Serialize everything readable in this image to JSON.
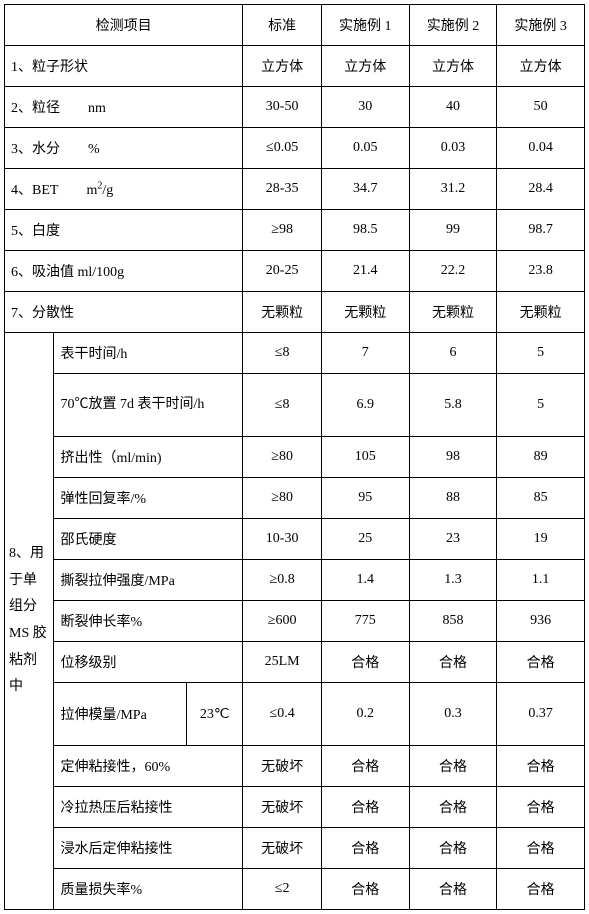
{
  "header": {
    "item": "检测项目",
    "std": "标准",
    "e1": "实施例 1",
    "e2": "实施例 2",
    "e3": "实施例 3"
  },
  "rows": [
    {
      "label": "1、粒子形状",
      "std": "立方体",
      "e1": "立方体",
      "e2": "立方体",
      "e3": "立方体"
    },
    {
      "label_html": "2、粒径&nbsp;&nbsp;&nbsp;&nbsp;&nbsp;&nbsp;&nbsp;&nbsp;nm",
      "std": "30-50",
      "e1": "30",
      "e2": "40",
      "e3": "50"
    },
    {
      "label_html": "3、水分&nbsp;&nbsp;&nbsp;&nbsp;&nbsp;&nbsp;&nbsp;&nbsp;%",
      "std": "≤0.05",
      "e1": "0.05",
      "e2": "0.03",
      "e3": "0.04"
    },
    {
      "label_html": "4、BET&nbsp;&nbsp;&nbsp;&nbsp;&nbsp;&nbsp;&nbsp;&nbsp;m<sup>2</sup>/g",
      "std": "28-35",
      "e1": "34.7",
      "e2": "31.2",
      "e3": "28.4"
    },
    {
      "label": "5、白度",
      "std": "≥98",
      "e1": "98.5",
      "e2": "99",
      "e3": "98.7"
    },
    {
      "label": "6、吸油值  ml/100g",
      "std": "20-25",
      "e1": "21.4",
      "e2": "22.2",
      "e3": "23.8"
    },
    {
      "label": "7、分散性",
      "std": "无颗粒",
      "e1": "无颗粒",
      "e2": "无颗粒",
      "e3": "无颗粒"
    }
  ],
  "group8": {
    "title": "8、用于单组分 MS 胶粘剂中",
    "rows": [
      {
        "label": "表干时间/h",
        "std": "≤8",
        "e1": "7",
        "e2": "6",
        "e3": "5"
      },
      {
        "label": "70℃放置 7d 表干时间/h",
        "std": "≤8",
        "e1": "6.9",
        "e2": "5.8",
        "e3": "5",
        "tall": true
      },
      {
        "label": "挤出性（ml/min)",
        "std": "≥80",
        "e1": "105",
        "e2": "98",
        "e3": "89"
      },
      {
        "label": "弹性回复率/%",
        "std": "≥80",
        "e1": "95",
        "e2": "88",
        "e3": "85"
      },
      {
        "label": "邵氏硬度",
        "std": "10-30",
        "e1": "25",
        "e2": "23",
        "e3": "19"
      },
      {
        "label": "撕裂拉伸强度/MPa",
        "std": "≥0.8",
        "e1": "1.4",
        "e2": "1.3",
        "e3": "1.1"
      },
      {
        "label": "断裂伸长率%",
        "std": "≥600",
        "e1": "775",
        "e2": "858",
        "e3": "936"
      },
      {
        "label": "位移级别",
        "std": "25LM",
        "e1": "合格",
        "e2": "合格",
        "e3": "合格"
      },
      {
        "label_main": "拉伸模量/MPa",
        "label_sub": "23℃",
        "std": "≤0.4",
        "e1": "0.2",
        "e2": "0.3",
        "e3": "0.37",
        "split": true
      },
      {
        "label": "定伸粘接性，60%",
        "std": "无破坏",
        "e1": "合格",
        "e2": "合格",
        "e3": "合格"
      },
      {
        "label": "冷拉热压后粘接性",
        "std": "无破坏",
        "e1": "合格",
        "e2": "合格",
        "e3": "合格"
      },
      {
        "label": "浸水后定伸粘接性",
        "std": "无破坏",
        "e1": "合格",
        "e2": "合格",
        "e3": "合格"
      },
      {
        "label": "质量损失率%",
        "std": "≤2",
        "e1": "合格",
        "e2": "合格",
        "e3": "合格"
      }
    ]
  }
}
